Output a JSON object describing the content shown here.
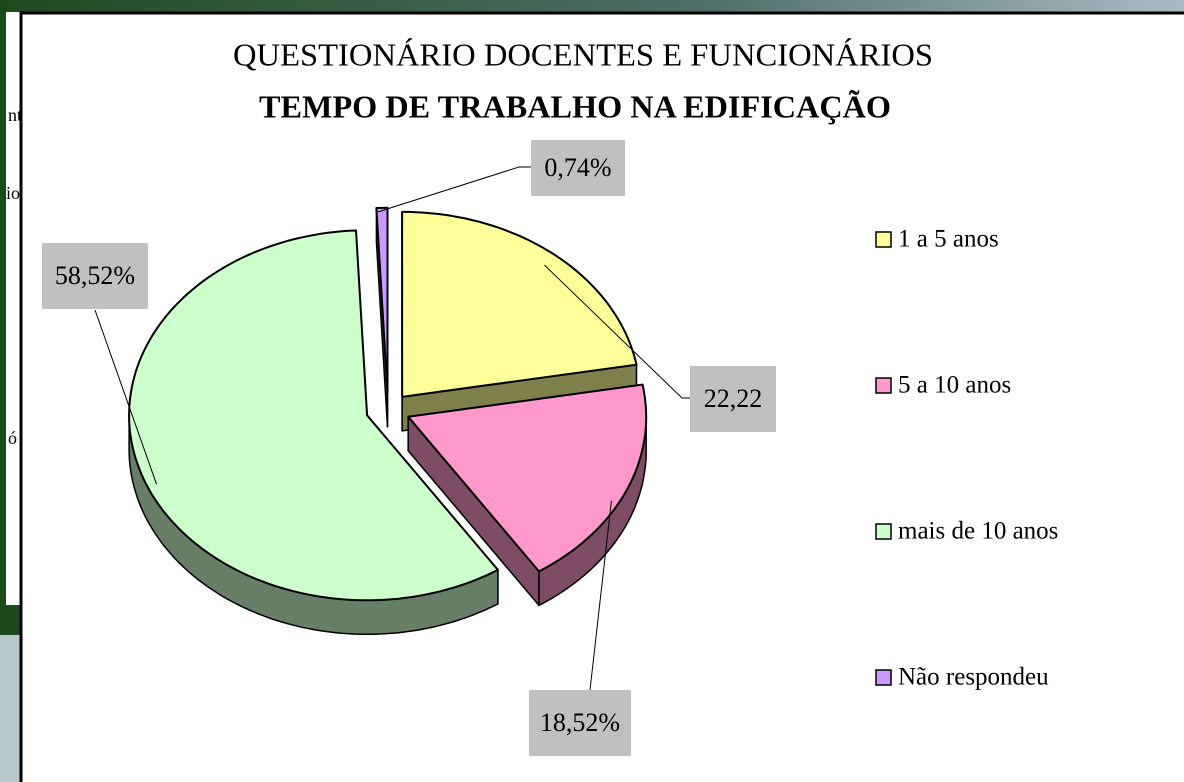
{
  "chart_data": {
    "type": "pie",
    "title": "QUESTIONÁRIO DOCENTES E FUNCIONÁRIOS",
    "subtitle": "TEMPO DE TRABALHO NA EDIFICAÇÃO",
    "categories": [
      "1 a 5 anos",
      "5 a 10 anos",
      "mais de 10 anos",
      "Não respondeu"
    ],
    "values": [
      22.22,
      18.52,
      58.52,
      0.74
    ],
    "value_labels": [
      "22,22",
      "18,52%",
      "58,52%",
      "0,74%"
    ],
    "colors": [
      "#ffff99",
      "#ff99cc",
      "#ccffcc",
      "#cc99ff"
    ],
    "legend": "right"
  },
  "background_text": [
    "nt",
    "io",
    "ó"
  ]
}
